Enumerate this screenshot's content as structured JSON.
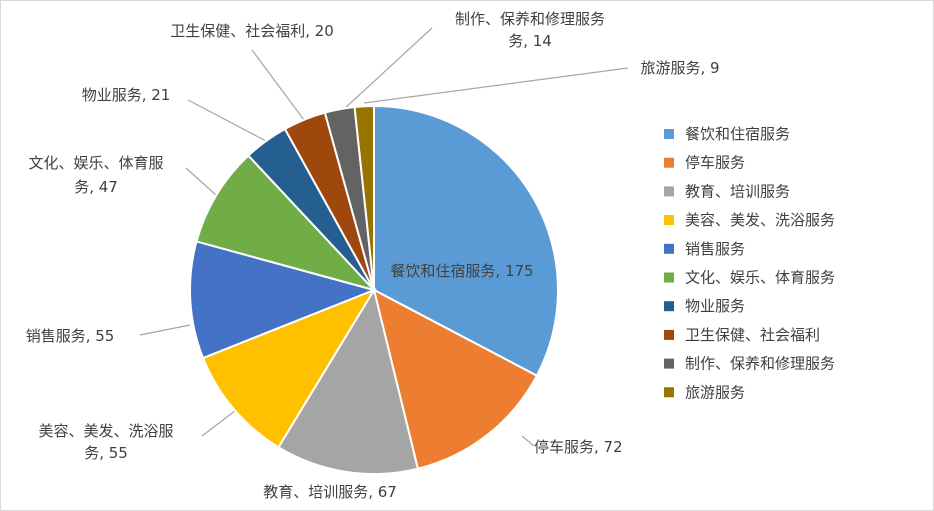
{
  "chart_data": {
    "type": "pie",
    "title": "",
    "legend_position": "right",
    "slices": [
      {
        "name": "餐饮和住宿服务",
        "value": 175,
        "label": "餐饮和住宿服务, 175",
        "color": "#5B9BD5"
      },
      {
        "name": "停车服务",
        "value": 72,
        "label": "停车服务, 72",
        "color": "#ED7D31"
      },
      {
        "name": "教育、培训服务",
        "value": 67,
        "label": "教育、培训服务, 67",
        "color": "#A5A5A5"
      },
      {
        "name": "美容、美发、洗浴服务",
        "value": 55,
        "label_lines": [
          "美容、美发、洗浴服",
          "务, 55"
        ],
        "color": "#FFC000"
      },
      {
        "name": "销售服务",
        "value": 55,
        "label": "销售服务, 55",
        "color": "#4472C4"
      },
      {
        "name": "文化、娱乐、体育服务",
        "value": 47,
        "label_lines": [
          "文化、娱乐、体育服",
          "务, 47"
        ],
        "color": "#70AD47"
      },
      {
        "name": "物业服务",
        "value": 21,
        "label": "物业服务, 21",
        "color": "#255E91"
      },
      {
        "name": "卫生保健、社会福利",
        "value": 20,
        "label": "卫生保健、社会福利, 20",
        "color": "#9E480E"
      },
      {
        "name": "制作、保养和修理服务",
        "value": 14,
        "label_lines": [
          "制作、保养和修理服务",
          "务, 14"
        ],
        "color": "#636363"
      },
      {
        "name": "旅游服务",
        "value": 9,
        "label": "旅游服务, 9",
        "color": "#997300"
      }
    ]
  }
}
